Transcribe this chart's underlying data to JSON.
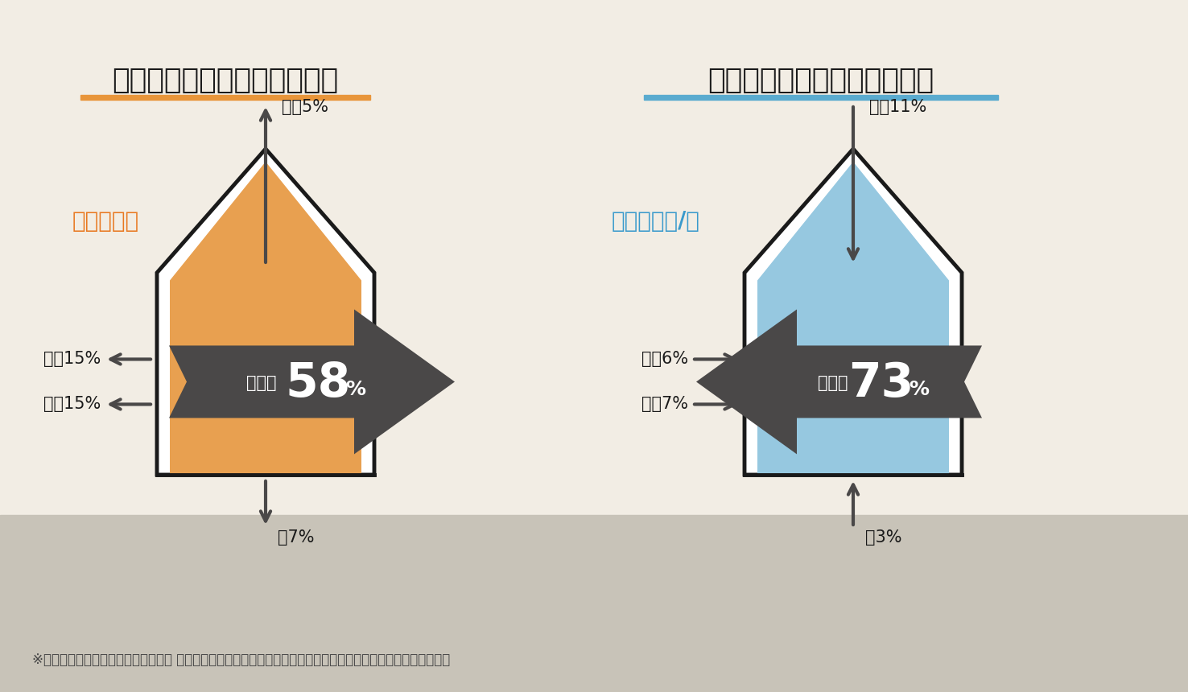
{
  "bg_color": "#f2ede4",
  "ground_color": "#c8c3b8",
  "title_left": "室内から外に熱が逃げる割合",
  "title_right": "外の熱が室内に入り込む割合",
  "title_underline_left": "#e8953a",
  "title_underline_right": "#5aabcf",
  "subtitle_left": "冬の暖房時",
  "subtitle_right": "夏の冷房時/昼",
  "subtitle_color_left": "#e87820",
  "subtitle_color_right": "#3a9acc",
  "house_fill_left": "#e8a050",
  "house_fill_right": "#96c8e0",
  "house_outline": "#1a1a1a",
  "arrow_color": "#4a4848",
  "label_color": "#1a1a1a",
  "footnote": "※出典：日本建材・住宅設備産業協会 省エネルギー建材普及促進センター「省エネ建材で、快適な家、健康な家」",
  "left": {
    "roof_label": "屋根5%",
    "left_label1": "換気15%",
    "left_label2": "外壁15%",
    "floor_label": "床7%",
    "center_label": "開口部",
    "center_pct": "58",
    "center_pct_small": "%"
  },
  "right": {
    "roof_label": "屋根11%",
    "left_label1": "換気6%",
    "left_label2": "外壁7%",
    "floor_label": "床3%",
    "center_label": "開口部",
    "center_pct": "73",
    "center_pct_small": "%"
  }
}
